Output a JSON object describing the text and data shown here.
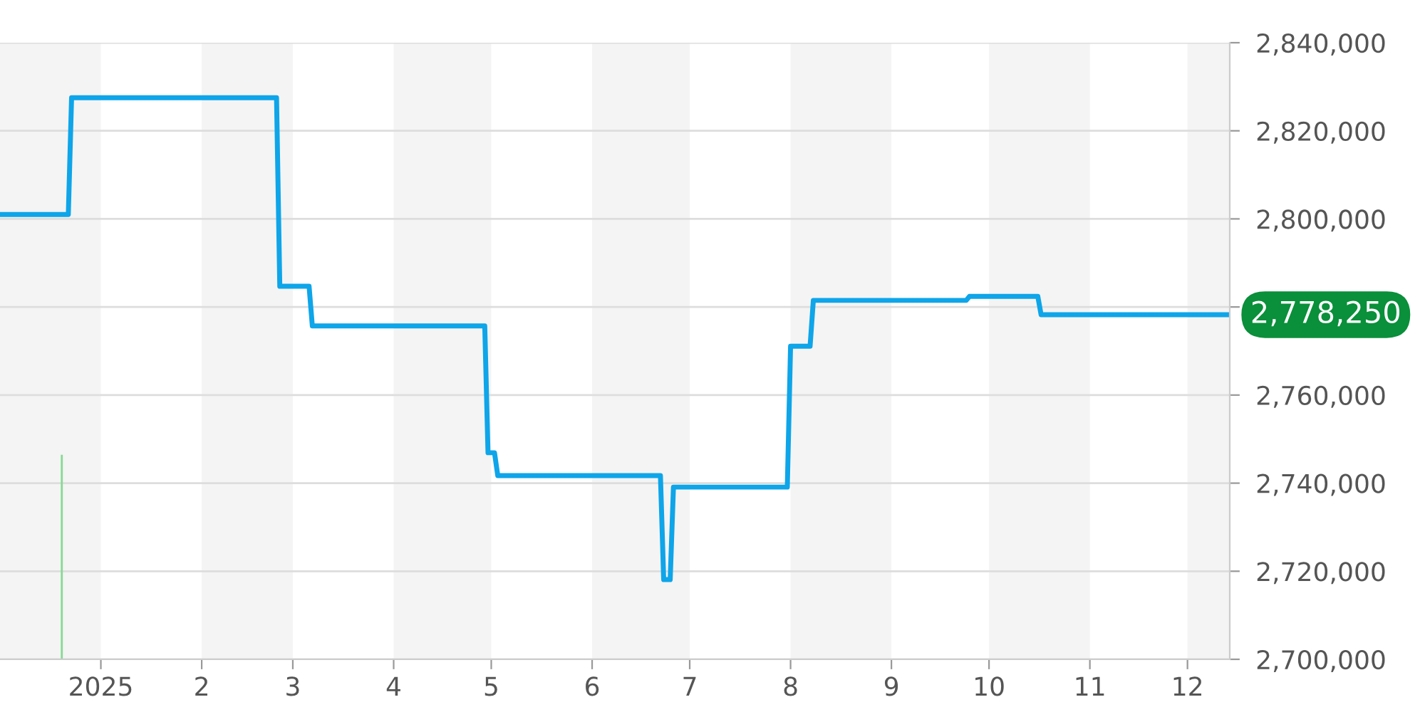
{
  "chart_data": {
    "type": "line",
    "series": [
      {
        "color": "#0ea5e9",
        "x": [
          "2024-12-01",
          "2024-12-22",
          "2024-12-23",
          "2025-02-24",
          "2025-02-25",
          "2025-03-06",
          "2025-03-07",
          "2025-04-29",
          "2025-04-30",
          "2025-05-02",
          "2025-05-03",
          "2025-06-22",
          "2025-06-23",
          "2025-06-25",
          "2025-06-26",
          "2025-07-31",
          "2025-08-01",
          "2025-08-07",
          "2025-08-08",
          "2025-09-24",
          "2025-09-25",
          "2025-10-16",
          "2025-10-17",
          "2025-12-13"
        ],
        "values": [
          2801000,
          2801000,
          2827500,
          2827500,
          2784700,
          2784700,
          2775700,
          2775700,
          2746900,
          2746900,
          2741700,
          2741700,
          2718100,
          2718100,
          2739100,
          2739100,
          2771100,
          2771100,
          2781500,
          2781500,
          2782400,
          2782400,
          2778250,
          2778250
        ]
      }
    ],
    "xlim": [
      "2024-12-01",
      "2025-12-14"
    ],
    "xticks": [
      {
        "value": "2025-01-01",
        "label": "2025"
      },
      {
        "value": "2025-02-01",
        "label": "2"
      },
      {
        "value": "2025-03-01",
        "label": "3"
      },
      {
        "value": "2025-04-01",
        "label": "4"
      },
      {
        "value": "2025-05-01",
        "label": "5"
      },
      {
        "value": "2025-06-01",
        "label": "6"
      },
      {
        "value": "2025-07-01",
        "label": "7"
      },
      {
        "value": "2025-08-01",
        "label": "8"
      },
      {
        "value": "2025-09-01",
        "label": "9"
      },
      {
        "value": "2025-10-01",
        "label": "10"
      },
      {
        "value": "2025-11-01",
        "label": "11"
      },
      {
        "value": "2025-12-01",
        "label": "12"
      }
    ],
    "ylim": [
      2700000,
      2840000
    ],
    "yticks": [
      {
        "value": 2700000,
        "label": "2,700,000"
      },
      {
        "value": 2720000,
        "label": "2,720,000"
      },
      {
        "value": 2740000,
        "label": "2,740,000"
      },
      {
        "value": 2760000,
        "label": "2,760,000"
      },
      {
        "value": 2780000,
        "label": null
      },
      {
        "value": 2800000,
        "label": "2,800,000"
      },
      {
        "value": 2820000,
        "label": "2,820,000"
      },
      {
        "value": 2840000,
        "label": "2,840,000"
      }
    ],
    "grid": "y",
    "line_style": "solid",
    "marker": "none",
    "bands": [
      {
        "axis": "x",
        "from": "2024-12-01",
        "to": "2025-01-01",
        "color": "#f4f4f4"
      },
      {
        "axis": "x",
        "from": "2025-02-01",
        "to": "2025-03-01",
        "color": "#f4f4f4"
      },
      {
        "axis": "x",
        "from": "2025-04-01",
        "to": "2025-05-01",
        "color": "#f4f4f4"
      },
      {
        "axis": "x",
        "from": "2025-06-01",
        "to": "2025-07-01",
        "color": "#f4f4f4"
      },
      {
        "axis": "x",
        "from": "2025-08-01",
        "to": "2025-09-01",
        "color": "#f4f4f4"
      },
      {
        "axis": "x",
        "from": "2025-10-01",
        "to": "2025-11-01",
        "color": "#f4f4f4"
      },
      {
        "axis": "x",
        "from": "2025-12-01",
        "to": "2025-12-14",
        "color": "#f4f4f4"
      }
    ],
    "ref_lines": [
      {
        "axis": "x",
        "value": "2024-12-20",
        "color": "#86d993",
        "line_style": "solid"
      }
    ],
    "annotations": [
      {
        "text": "2,778,250",
        "x": "2025-12-13",
        "y": 2778250
      }
    ]
  }
}
